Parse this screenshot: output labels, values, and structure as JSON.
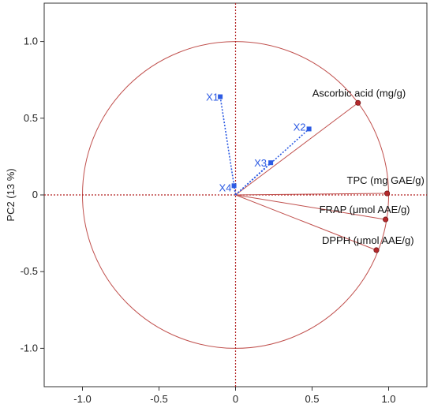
{
  "chart_data": {
    "type": "scatter",
    "subtype": "pca-correlation-circle",
    "title": "",
    "xlabel": "",
    "ylabel": "PC2  (13 %)",
    "xlim": [
      -1.25,
      1.25
    ],
    "ylim": [
      -1.25,
      1.25
    ],
    "x_ticks": [
      -1.0,
      -0.5,
      0,
      0.5,
      1.0
    ],
    "x_tick_labels": [
      "-1.0",
      "-0.5",
      "0",
      "0.5",
      "1.0"
    ],
    "y_ticks": [
      -1.0,
      -0.5,
      0,
      0.5,
      1.0
    ],
    "y_tick_labels": [
      "-1.0",
      "-0.5",
      "0",
      "0.5",
      "1.0"
    ],
    "grid": false,
    "unit_circle": true,
    "variables": [
      {
        "name": "Ascorbic acid (mg/g)",
        "x": 0.8,
        "y": 0.6
      },
      {
        "name": "TPC (mg GAE/g)",
        "x": 0.99,
        "y": 0.01
      },
      {
        "name": "FRAP (μmol AAE/g)",
        "x": 0.98,
        "y": -0.16
      },
      {
        "name": "DPPH (μmol AAE/g)",
        "x": 0.92,
        "y": -0.36
      }
    ],
    "observations": [
      {
        "name": "X1",
        "x": -0.1,
        "y": 0.64
      },
      {
        "name": "X2",
        "x": 0.48,
        "y": 0.43
      },
      {
        "name": "X3",
        "x": 0.23,
        "y": 0.21
      },
      {
        "name": "X4",
        "x": -0.01,
        "y": 0.06
      }
    ],
    "colors": {
      "variables": "#c0504d",
      "variable_marker": "#b5282b",
      "observations": "#2d5be3",
      "axes": "#333333",
      "origin_lines": "#b22222"
    }
  }
}
